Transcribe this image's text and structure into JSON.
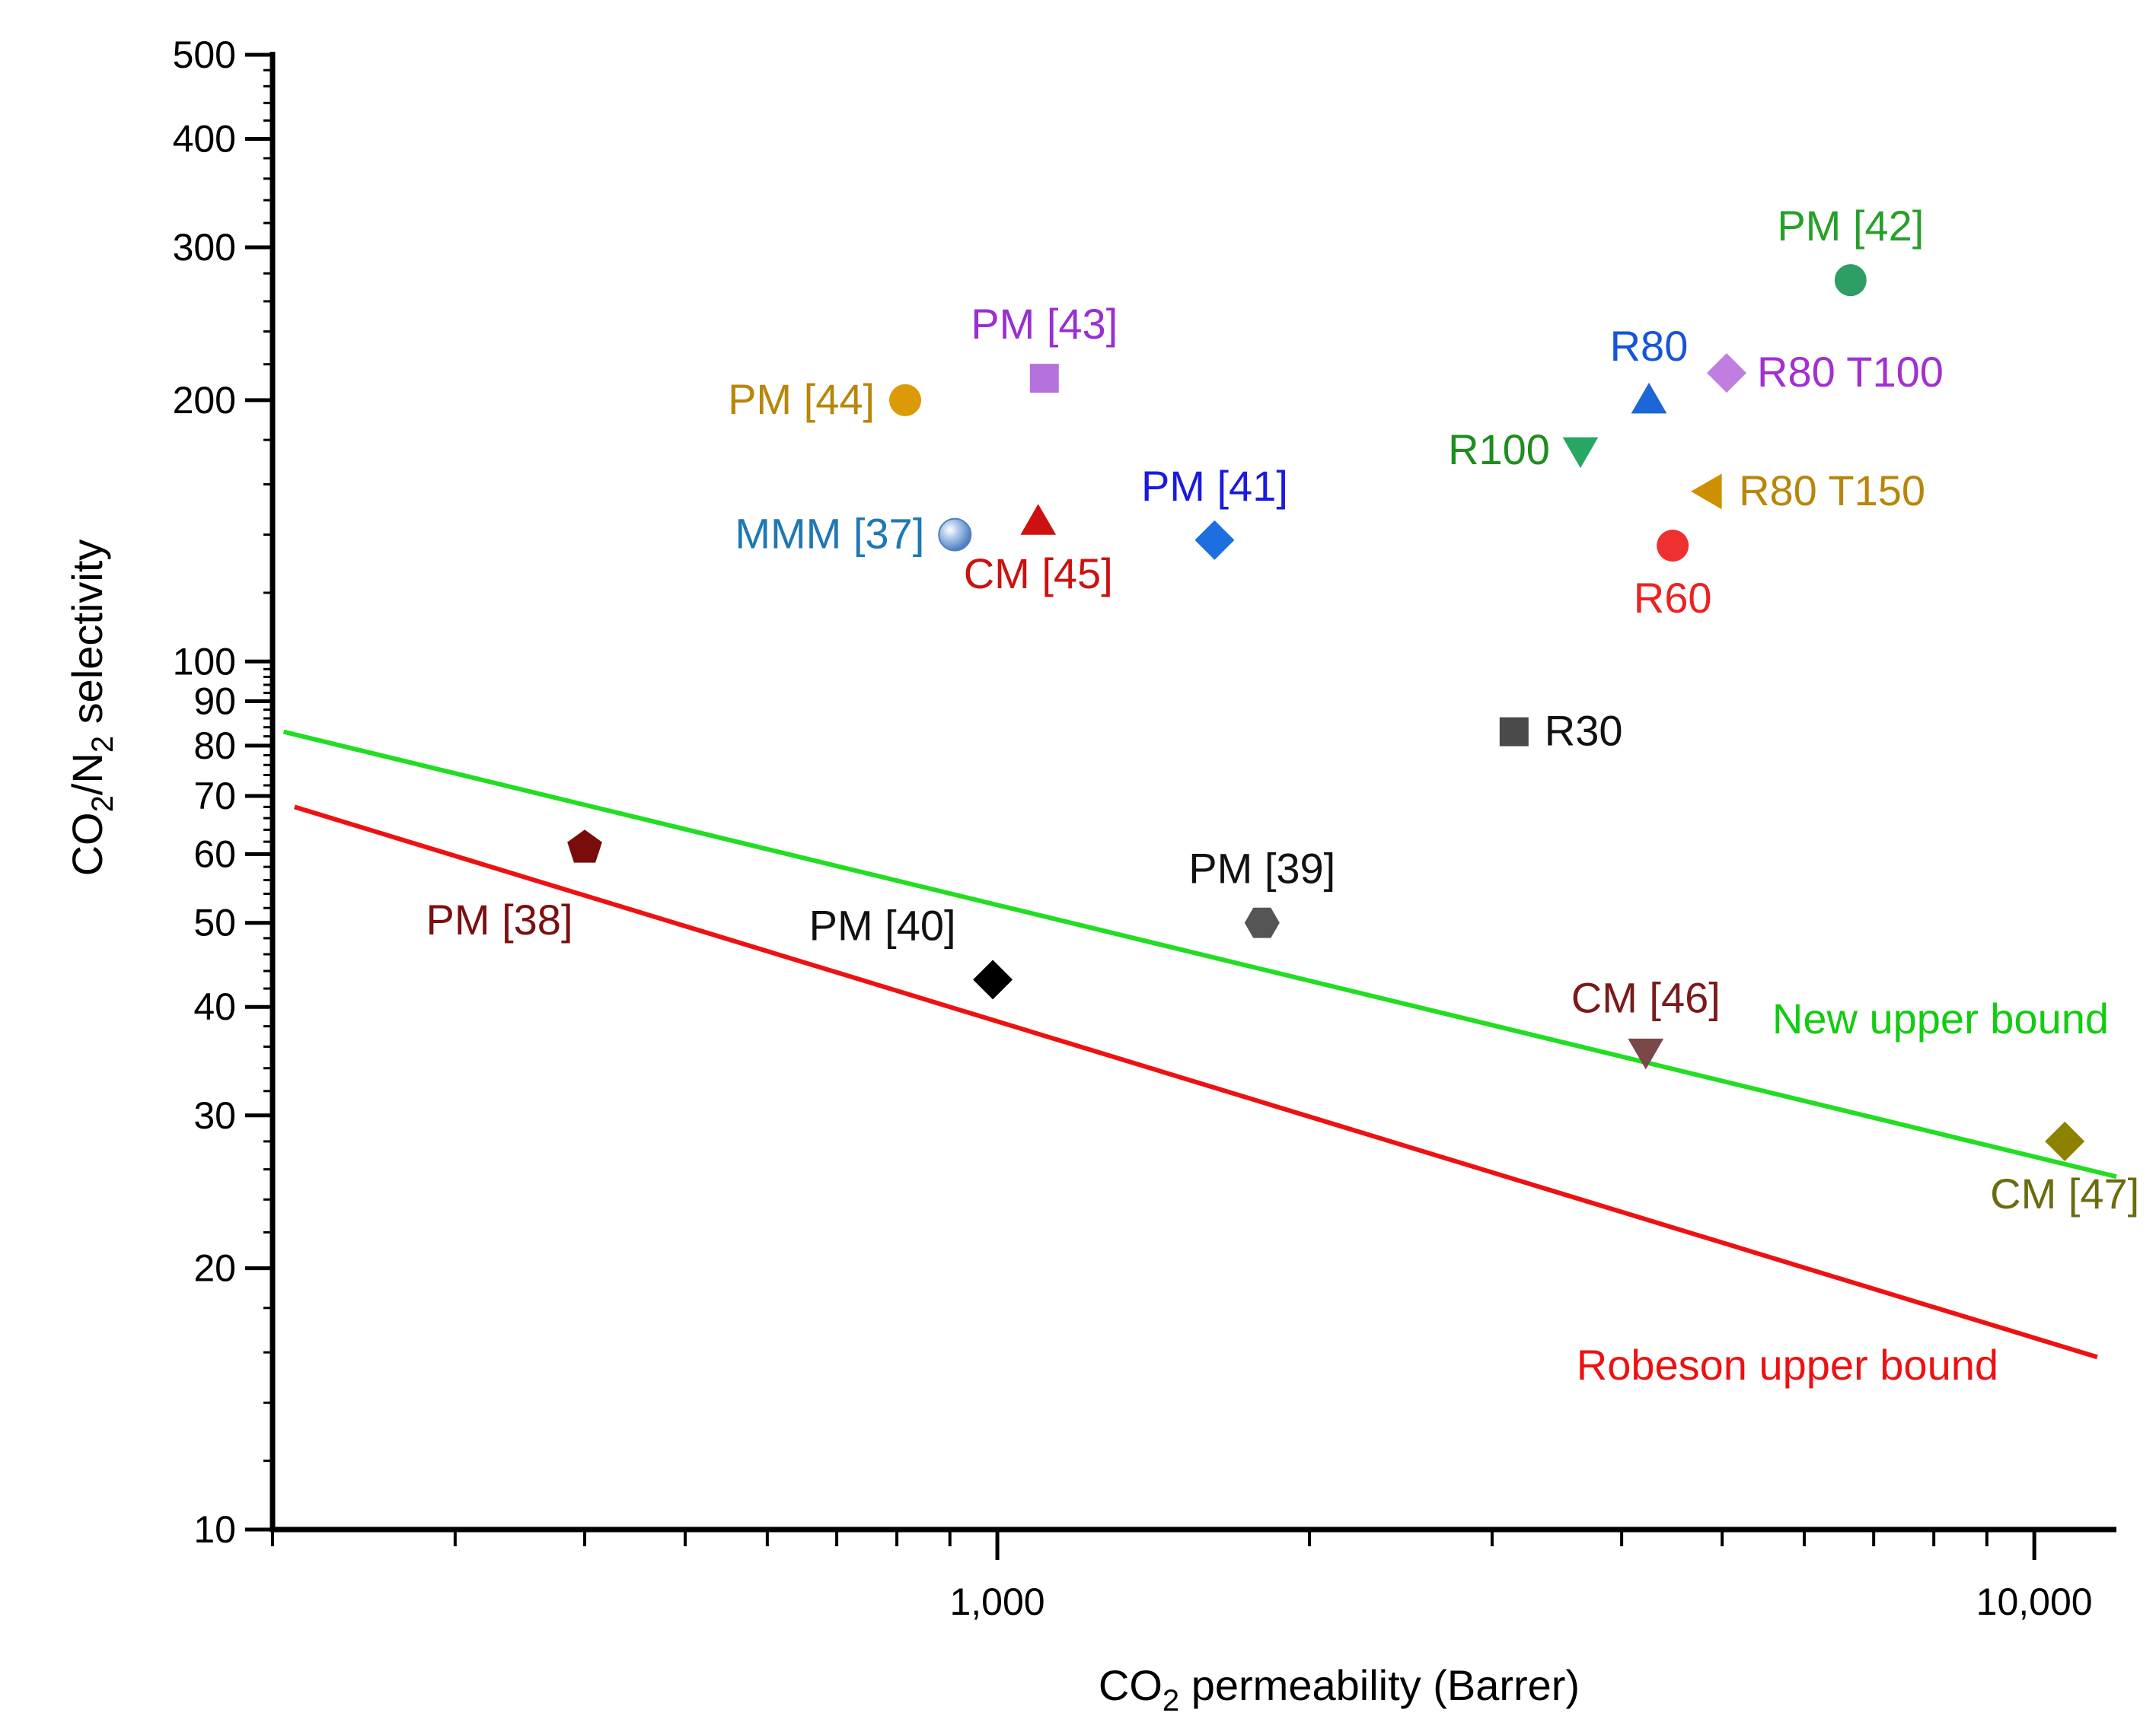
{
  "chart_data": {
    "type": "scatter",
    "x_scale": "log",
    "y_scale": "log",
    "xlabel": {
      "main": "CO",
      "sub": "2",
      "rest": " permeability (Barrer)"
    },
    "ylabel": {
      "p1": "CO",
      "s1": "2",
      "p2": "/N",
      "s2": "2",
      "p3": " selectivity"
    },
    "xlim": [
      200,
      12000
    ],
    "ylim": [
      10,
      500
    ],
    "x_ticks": [
      {
        "value": 1000,
        "label": "1,000"
      },
      {
        "value": 10000,
        "label": "10,000"
      }
    ],
    "y_ticks": [
      {
        "value": 10,
        "label": "10"
      },
      {
        "value": 20,
        "label": "20"
      },
      {
        "value": 30,
        "label": "30"
      },
      {
        "value": 40,
        "label": "40"
      },
      {
        "value": 50,
        "label": "50"
      },
      {
        "value": 60,
        "label": "60"
      },
      {
        "value": 70,
        "label": "70"
      },
      {
        "value": 80,
        "label": "80"
      },
      {
        "value": 90,
        "label": "90"
      },
      {
        "value": 100,
        "label": "100"
      },
      {
        "value": 200,
        "label": "200"
      },
      {
        "value": 300,
        "label": "300"
      },
      {
        "value": 400,
        "label": "400"
      },
      {
        "value": 500,
        "label": "500"
      }
    ],
    "lines": [
      {
        "name": "New upper bound",
        "color": "#22dd22",
        "points": [
          [
            205,
            83
          ],
          [
            12000,
            25.5
          ]
        ],
        "label_pos": "right"
      },
      {
        "name": "Robeson upper bound",
        "color": "#ee1111",
        "points": [
          [
            210,
            68
          ],
          [
            11500,
            15.8
          ]
        ],
        "label_pos": "below"
      }
    ],
    "points": [
      {
        "label": "PM [42]",
        "x": 6650,
        "y": 275,
        "marker": "circle",
        "color": "#2e9e64",
        "label_color": "#27a02a",
        "label_pos": "above"
      },
      {
        "label": "PM [43]",
        "x": 1110,
        "y": 212,
        "marker": "square",
        "color": "#b572dc",
        "label_color": "#9a2fd1",
        "label_pos": "above"
      },
      {
        "label": "R80",
        "x": 4250,
        "y": 200,
        "marker": "triangle-up",
        "color": "#1c66d6",
        "label_color": "#1655d6",
        "label_pos": "above"
      },
      {
        "label": "R80 T100",
        "x": 5050,
        "y": 215,
        "marker": "diamond",
        "color": "#c07ee0",
        "label_color": "#a32fd1",
        "label_pos": "right"
      },
      {
        "label": "PM [44]",
        "x": 815,
        "y": 200,
        "marker": "circle",
        "color": "#dc9a06",
        "label_color": "#b8860b",
        "label_pos": "left"
      },
      {
        "label": "R100",
        "x": 3650,
        "y": 175,
        "marker": "triangle-down",
        "color": "#27a862",
        "label_color": "#1f8d1f",
        "label_pos": "left"
      },
      {
        "label": "PM [41]",
        "x": 1620,
        "y": 138,
        "marker": "diamond",
        "color": "#1d6fe0",
        "label_color": "#1a1ae0",
        "label_pos": "above"
      },
      {
        "label": "R80 T150",
        "x": 4850,
        "y": 157,
        "marker": "triangle-left",
        "color": "#cc9000",
        "label_color": "#b8860b",
        "label_pos": "right"
      },
      {
        "label": "MMM [37]",
        "x": 910,
        "y": 140,
        "marker": "sphere",
        "color": "#7fa6d6",
        "label_color": "#1f78b4",
        "label_pos": "left"
      },
      {
        "label": "CM [45]",
        "x": 1095,
        "y": 145,
        "marker": "triangle-up",
        "color": "#cc1111",
        "label_color": "#cc1111",
        "label_pos": "below"
      },
      {
        "label": "R60",
        "x": 4480,
        "y": 136,
        "marker": "circle",
        "color": "#ee3030",
        "label_color": "#ee2020",
        "label_pos": "below"
      },
      {
        "label": "R30",
        "x": 3150,
        "y": 83,
        "marker": "square",
        "color": "#4a4a4a",
        "label_color": "#111111",
        "label_pos": "right"
      },
      {
        "label": "PM [38]",
        "x": 400,
        "y": 61,
        "marker": "pentagon",
        "color": "#7a0c0c",
        "label_color": "#7a1010",
        "label_pos": "below-left"
      },
      {
        "label": "PM [39]",
        "x": 1800,
        "y": 50,
        "marker": "hexagon",
        "color": "#555555",
        "label_color": "#111111",
        "label_pos": "above"
      },
      {
        "label": "PM [40]",
        "x": 990,
        "y": 43,
        "marker": "diamond",
        "color": "#000000",
        "label_color": "#111111",
        "label_pos": "above-left"
      },
      {
        "label": "CM [46]",
        "x": 4220,
        "y": 35.5,
        "marker": "triangle-down",
        "color": "#7a4848",
        "label_color": "#7a1a1a",
        "label_pos": "above"
      },
      {
        "label": "CM [47]",
        "x": 10700,
        "y": 28,
        "marker": "diamond",
        "color": "#8c8200",
        "label_color": "#6b6b10",
        "label_pos": "below"
      }
    ]
  }
}
